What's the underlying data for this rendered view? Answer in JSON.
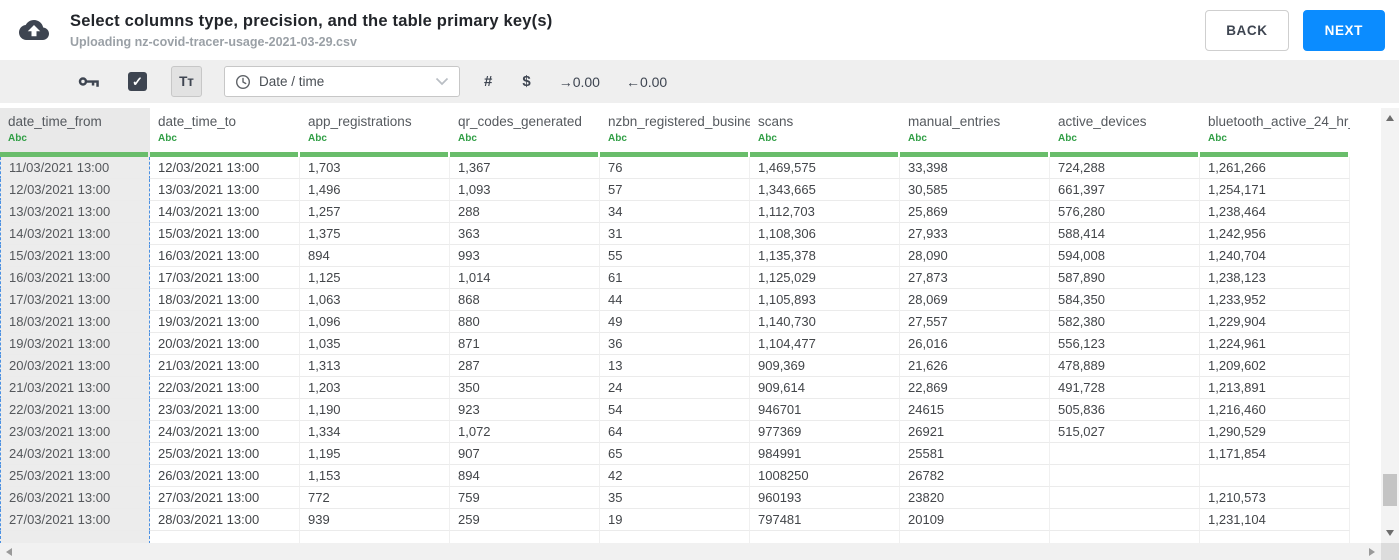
{
  "header": {
    "title": "Select columns type, precision, and the table primary key(s)",
    "subtitle": "Uploading nz-covid-tracer-usage-2021-03-29.csv",
    "back_label": "BACK",
    "next_label": "NEXT"
  },
  "toolbar": {
    "checkbox_checked": "✓",
    "text_type_label": "Tт",
    "type_value": "Date / time",
    "number_label": "#",
    "currency_label": "$",
    "increase_decimal_label": "→0.00",
    "decrease_decimal_label": "←0.00"
  },
  "icons": {
    "upload": "upload-cloud-icon",
    "key": "primary-key-icon",
    "clock": "clock-icon",
    "chevron": "chevron-down-icon"
  },
  "colors": {
    "accent_blue": "#0b8cff",
    "green_bar": "#69bd6b",
    "abc_green": "#2f9e44",
    "selection_dashed_blue": "#4a90e2"
  },
  "table": {
    "columns": [
      {
        "name": "date_time_from",
        "type": "Abc",
        "selected": true
      },
      {
        "name": "date_time_to",
        "type": "Abc",
        "selected": false
      },
      {
        "name": "app_registrations",
        "type": "Abc",
        "selected": false
      },
      {
        "name": "qr_codes_generated",
        "type": "Abc",
        "selected": false
      },
      {
        "name": "nzbn_registered_busine",
        "type": "Abc",
        "selected": false
      },
      {
        "name": "scans",
        "type": "Abc",
        "selected": false
      },
      {
        "name": "manual_entries",
        "type": "Abc",
        "selected": false
      },
      {
        "name": "active_devices",
        "type": "Abc",
        "selected": false
      },
      {
        "name": "bluetooth_active_24_hr_",
        "type": "Abc",
        "selected": false
      }
    ],
    "rows": [
      [
        "11/03/2021 13:00",
        "12/03/2021 13:00",
        "1,703",
        "1,367",
        "76",
        "1,469,575",
        "33,398",
        "724,288",
        "1,261,266"
      ],
      [
        "12/03/2021 13:00",
        "13/03/2021 13:00",
        "1,496",
        "1,093",
        "57",
        "1,343,665",
        "30,585",
        "661,397",
        "1,254,171"
      ],
      [
        "13/03/2021 13:00",
        "14/03/2021 13:00",
        "1,257",
        "288",
        "34",
        "1,112,703",
        "25,869",
        "576,280",
        "1,238,464"
      ],
      [
        "14/03/2021 13:00",
        "15/03/2021 13:00",
        "1,375",
        "363",
        "31",
        "1,108,306",
        "27,933",
        "588,414",
        "1,242,956"
      ],
      [
        "15/03/2021 13:00",
        "16/03/2021 13:00",
        "894",
        "993",
        "55",
        "1,135,378",
        "28,090",
        "594,008",
        "1,240,704"
      ],
      [
        "16/03/2021 13:00",
        "17/03/2021 13:00",
        "1,125",
        "1,014",
        "61",
        "1,125,029",
        "27,873",
        "587,890",
        "1,238,123"
      ],
      [
        "17/03/2021 13:00",
        "18/03/2021 13:00",
        "1,063",
        "868",
        "44",
        "1,105,893",
        "28,069",
        "584,350",
        "1,233,952"
      ],
      [
        "18/03/2021 13:00",
        "19/03/2021 13:00",
        "1,096",
        "880",
        "49",
        "1,140,730",
        "27,557",
        "582,380",
        "1,229,904"
      ],
      [
        "19/03/2021 13:00",
        "20/03/2021 13:00",
        "1,035",
        "871",
        "36",
        "1,104,477",
        "26,016",
        "556,123",
        "1,224,961"
      ],
      [
        "20/03/2021 13:00",
        "21/03/2021 13:00",
        "1,313",
        "287",
        "13",
        "909,369",
        "21,626",
        "478,889",
        "1,209,602"
      ],
      [
        "21/03/2021 13:00",
        "22/03/2021 13:00",
        "1,203",
        "350",
        "24",
        "909,614",
        "22,869",
        "491,728",
        "1,213,891"
      ],
      [
        "22/03/2021 13:00",
        "23/03/2021 13:00",
        "1,190",
        "923",
        "54",
        "946701",
        "24615",
        "505,836",
        "1,216,460"
      ],
      [
        "23/03/2021 13:00",
        "24/03/2021 13:00",
        "1,334",
        "1,072",
        "64",
        "977369",
        "26921",
        "515,027",
        "1,290,529"
      ],
      [
        "24/03/2021 13:00",
        "25/03/2021 13:00",
        "1,195",
        "907",
        "65",
        "984991",
        "25581",
        "",
        "1,171,854"
      ],
      [
        "25/03/2021 13:00",
        "26/03/2021 13:00",
        "1,153",
        "894",
        "42",
        "1008250",
        "26782",
        "",
        ""
      ],
      [
        "26/03/2021 13:00",
        "27/03/2021 13:00",
        "772",
        "759",
        "35",
        "960193",
        "23820",
        "",
        "1,210,573"
      ],
      [
        "27/03/2021 13:00",
        "28/03/2021 13:00",
        "939",
        "259",
        "19",
        "797481",
        "20109",
        "",
        "1,231,104"
      ]
    ]
  }
}
